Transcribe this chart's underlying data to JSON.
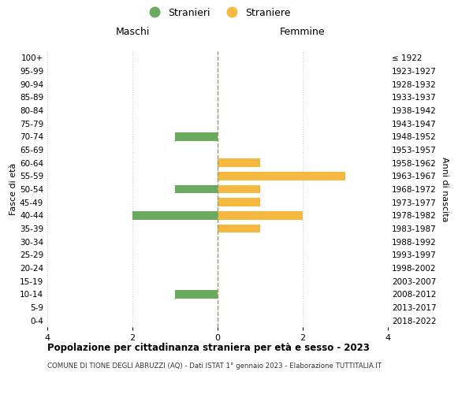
{
  "age_groups": [
    "100+",
    "95-99",
    "90-94",
    "85-89",
    "80-84",
    "75-79",
    "70-74",
    "65-69",
    "60-64",
    "55-59",
    "50-54",
    "45-49",
    "40-44",
    "35-39",
    "30-34",
    "25-29",
    "20-24",
    "15-19",
    "10-14",
    "5-9",
    "0-4"
  ],
  "birth_years": [
    "≤ 1922",
    "1923-1927",
    "1928-1932",
    "1933-1937",
    "1938-1942",
    "1943-1947",
    "1948-1952",
    "1953-1957",
    "1958-1962",
    "1963-1967",
    "1968-1972",
    "1973-1977",
    "1978-1982",
    "1983-1987",
    "1988-1992",
    "1993-1997",
    "1998-2002",
    "2003-2007",
    "2008-2012",
    "2013-2017",
    "2018-2022"
  ],
  "maschi": [
    0,
    0,
    0,
    0,
    0,
    0,
    1,
    0,
    0,
    0,
    1,
    0,
    2,
    0,
    0,
    0,
    0,
    0,
    1,
    0,
    0
  ],
  "femmine": [
    0,
    0,
    0,
    0,
    0,
    0,
    0,
    0,
    1,
    3,
    1,
    1,
    2,
    1,
    0,
    0,
    0,
    0,
    0,
    0,
    0
  ],
  "color_maschi": "#6aaa5e",
  "color_femmine": "#f5b942",
  "title": "Popolazione per cittadinanza straniera per età e sesso - 2023",
  "subtitle": "COMUNE DI TIONE DEGLI ABRUZZI (AQ) - Dati ISTAT 1° gennaio 2023 - Elaborazione TUTTITALIA.IT",
  "xlabel_left": "Maschi",
  "xlabel_right": "Femmine",
  "ylabel_left": "Fasce di età",
  "ylabel_right": "Anni di nascita",
  "legend_maschi": "Stranieri",
  "legend_femmine": "Straniere",
  "xlim": 4,
  "background_color": "#ffffff",
  "grid_color": "#d0d0d0",
  "center_line_color": "#999966"
}
